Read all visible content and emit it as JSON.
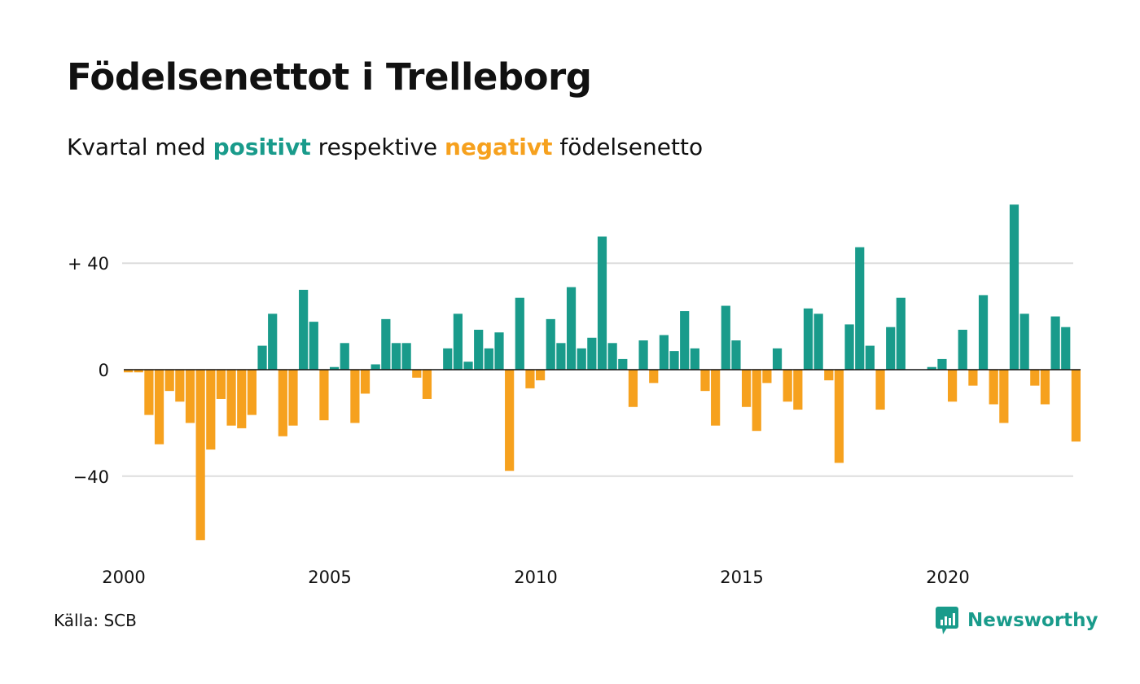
{
  "title": "Födelsenettot i Trelleborg",
  "subtitle": {
    "pre": "Kvartal med ",
    "positive": "positivt",
    "mid": " respektive ",
    "negative": "negativt",
    "post": " födelsenetto"
  },
  "source": "Källa: SCB",
  "logo": {
    "name": "Newsworthy",
    "icon": "speech-bubble-bar-chart-icon"
  },
  "colors": {
    "positive": "#199b8b",
    "negative": "#f6a11e",
    "grid": "#dddddd",
    "zero": "#111111"
  },
  "chart_data": {
    "type": "bar",
    "title": "Födelsenettot i Trelleborg",
    "xlabel": "",
    "ylabel": "",
    "start_year": 2000,
    "frequency": "quarterly",
    "ylim": [
      -70,
      65
    ],
    "y_ticks": [
      {
        "value": 40,
        "label": "+ 40"
      },
      {
        "value": 0,
        "label": "0"
      },
      {
        "value": -40,
        "label": "−40"
      }
    ],
    "x_ticks": [
      {
        "year": 2000,
        "label": "2000"
      },
      {
        "year": 2005,
        "label": "2005"
      },
      {
        "year": 2010,
        "label": "2010"
      },
      {
        "year": 2015,
        "label": "2015"
      },
      {
        "year": 2020,
        "label": "2020"
      }
    ],
    "grid": true,
    "values": [
      -1,
      -1,
      -17,
      -28,
      -8,
      -12,
      -20,
      -64,
      -30,
      -11,
      -21,
      -22,
      -17,
      9,
      21,
      -25,
      -21,
      30,
      18,
      -19,
      1,
      10,
      -20,
      -9,
      2,
      19,
      10,
      10,
      -3,
      -11,
      0,
      8,
      21,
      3,
      15,
      8,
      14,
      -38,
      27,
      -7,
      -4,
      19,
      10,
      31,
      8,
      12,
      50,
      10,
      4,
      -14,
      11,
      -5,
      13,
      7,
      22,
      8,
      -8,
      -21,
      24,
      11,
      -14,
      -23,
      -5,
      8,
      -12,
      -15,
      23,
      21,
      -4,
      -35,
      17,
      46,
      9,
      -15,
      16,
      27,
      0,
      0,
      1,
      4,
      -12,
      15,
      -6,
      28,
      -13,
      -20,
      62,
      21,
      -6,
      -13,
      20,
      16,
      -27
    ]
  }
}
